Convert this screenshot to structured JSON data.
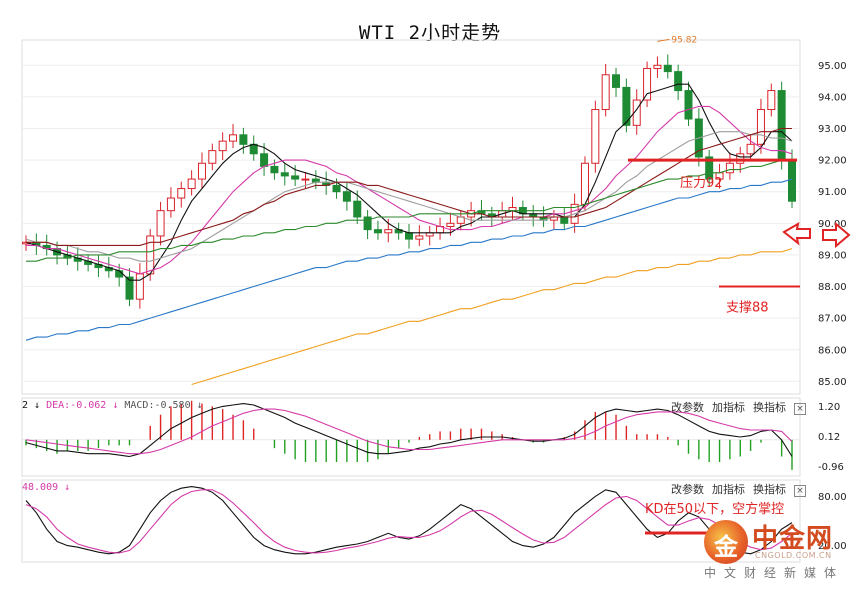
{
  "title": "WTI 2小时走势",
  "chart_data": [
    {
      "type": "candlestick",
      "instrument": "WTI",
      "timeframe": "2H",
      "y_axis_ticks": [
        "95.00",
        "94.00",
        "93.00",
        "92.00",
        "91.00",
        "90.00",
        "89.00",
        "88.00",
        "87.00",
        "86.00",
        "85.00"
      ],
      "ylim": [
        84.6,
        95.8
      ],
      "x_count": 75,
      "high_marker": "95.82",
      "closes": [
        89.4,
        89.3,
        89.2,
        89.0,
        88.9,
        88.8,
        88.7,
        88.6,
        88.5,
        88.3,
        87.6,
        88.4,
        89.6,
        90.4,
        90.8,
        91.1,
        91.4,
        91.9,
        92.3,
        92.6,
        92.8,
        92.5,
        92.2,
        91.8,
        91.6,
        91.5,
        91.4,
        91.4,
        91.3,
        91.2,
        91.0,
        90.7,
        90.2,
        89.8,
        89.7,
        89.8,
        89.7,
        89.5,
        89.6,
        89.7,
        89.9,
        90.0,
        90.2,
        90.4,
        90.3,
        90.2,
        90.4,
        90.5,
        90.3,
        90.2,
        90.1,
        90.2,
        90.0,
        90.6,
        91.9,
        93.6,
        94.7,
        94.3,
        93.1,
        93.9,
        94.9,
        95.0,
        94.8,
        94.2,
        93.3,
        92.1,
        91.4,
        91.6,
        91.9,
        92.2,
        92.5,
        93.6,
        94.2,
        92.0,
        90.7
      ],
      "series": [
        {
          "name": "MA5",
          "color": "#111111",
          "values": [
            89.4,
            89.3,
            89.2,
            89.1,
            89.0,
            88.9,
            88.8,
            88.7,
            88.6,
            88.5,
            88.2,
            88.2,
            88.4,
            88.9,
            89.4,
            90.1,
            90.7,
            91.1,
            91.5,
            91.9,
            92.2,
            92.4,
            92.5,
            92.4,
            92.2,
            91.9,
            91.7,
            91.6,
            91.5,
            91.4,
            91.3,
            91.1,
            90.9,
            90.6,
            90.3,
            90.0,
            89.8,
            89.7,
            89.7,
            89.7,
            89.7,
            89.7,
            89.9,
            90.0,
            90.2,
            90.2,
            90.3,
            90.4,
            90.3,
            90.3,
            90.3,
            90.3,
            90.2,
            90.2,
            90.6,
            91.3,
            92.1,
            92.9,
            93.2,
            93.6,
            94.1,
            94.2,
            94.3,
            94.4,
            94.4,
            93.9,
            93.2,
            92.6,
            92.2,
            92.1,
            92.1,
            92.4,
            92.9,
            92.9,
            92.6
          ]
        },
        {
          "name": "MA10",
          "color": "#d53aa8",
          "values": [
            89.3,
            89.3,
            89.2,
            89.2,
            89.1,
            89.0,
            88.9,
            88.8,
            88.7,
            88.6,
            88.5,
            88.4,
            88.5,
            88.6,
            88.8,
            89.1,
            89.4,
            89.8,
            90.2,
            90.6,
            91.0,
            91.3,
            91.6,
            91.8,
            91.9,
            92.0,
            92.0,
            92.0,
            91.9,
            91.8,
            91.6,
            91.5,
            91.3,
            91.1,
            90.9,
            90.7,
            90.5,
            90.3,
            90.1,
            90.0,
            89.9,
            89.8,
            89.8,
            89.8,
            89.9,
            89.9,
            90.0,
            90.1,
            90.2,
            90.2,
            90.2,
            90.3,
            90.3,
            90.4,
            90.5,
            90.8,
            91.1,
            91.5,
            91.8,
            92.1,
            92.5,
            92.9,
            93.2,
            93.5,
            93.6,
            93.7,
            93.7,
            93.5,
            93.2,
            92.9,
            92.6,
            92.4,
            92.3,
            92.3,
            92.2
          ]
        },
        {
          "name": "MA20",
          "color": "#9e9e9e",
          "values": [
            89.5,
            89.4,
            89.4,
            89.3,
            89.3,
            89.2,
            89.1,
            89.1,
            89.0,
            88.9,
            88.9,
            88.8,
            88.8,
            88.9,
            89.0,
            89.1,
            89.2,
            89.4,
            89.6,
            89.8,
            90.0,
            90.2,
            90.4,
            90.6,
            90.8,
            91.0,
            91.1,
            91.2,
            91.3,
            91.3,
            91.3,
            91.3,
            91.2,
            91.1,
            91.0,
            90.9,
            90.8,
            90.7,
            90.6,
            90.5,
            90.4,
            90.3,
            90.2,
            90.1,
            90.1,
            90.1,
            90.1,
            90.1,
            90.1,
            90.1,
            90.1,
            90.2,
            90.2,
            90.3,
            90.4,
            90.6,
            90.8,
            91.0,
            91.3,
            91.5,
            91.8,
            92.0,
            92.2,
            92.4,
            92.6,
            92.7,
            92.8,
            92.9,
            92.9,
            92.9,
            92.8,
            92.8,
            92.7,
            92.7,
            92.6
          ]
        },
        {
          "name": "MA30",
          "color": "#8b1a1a",
          "values": [
            89.4,
            89.4,
            89.4,
            89.3,
            89.3,
            89.3,
            89.3,
            89.3,
            89.3,
            89.3,
            89.3,
            89.3,
            89.4,
            89.4,
            89.5,
            89.6,
            89.7,
            89.8,
            89.9,
            90.0,
            90.1,
            90.3,
            90.4,
            90.6,
            90.7,
            90.9,
            91.0,
            91.1,
            91.2,
            91.2,
            91.3,
            91.3,
            91.3,
            91.2,
            91.2,
            91.1,
            91.0,
            90.9,
            90.8,
            90.7,
            90.6,
            90.5,
            90.4,
            90.3,
            90.3,
            90.2,
            90.2,
            90.2,
            90.2,
            90.2,
            90.2,
            90.2,
            90.2,
            90.2,
            90.3,
            90.4,
            90.5,
            90.7,
            90.9,
            91.1,
            91.3,
            91.5,
            91.7,
            91.9,
            92.1,
            92.3,
            92.4,
            92.5,
            92.6,
            92.7,
            92.8,
            92.9,
            92.9,
            93.0,
            93.0
          ]
        },
        {
          "name": "MA60",
          "color": "#2d8a2d",
          "values": [
            88.8,
            88.8,
            88.9,
            88.9,
            88.9,
            89.0,
            89.0,
            89.0,
            89.0,
            89.1,
            89.1,
            89.1,
            89.1,
            89.2,
            89.2,
            89.3,
            89.3,
            89.4,
            89.4,
            89.5,
            89.5,
            89.6,
            89.6,
            89.7,
            89.7,
            89.8,
            89.8,
            89.9,
            89.9,
            90.0,
            90.0,
            90.1,
            90.1,
            90.1,
            90.2,
            90.2,
            90.2,
            90.2,
            90.3,
            90.3,
            90.3,
            90.3,
            90.3,
            90.3,
            90.4,
            90.4,
            90.4,
            90.4,
            90.4,
            90.4,
            90.4,
            90.5,
            90.5,
            90.5,
            90.6,
            90.7,
            90.8,
            90.9,
            91.0,
            91.1,
            91.2,
            91.3,
            91.4,
            91.4,
            91.5,
            91.5,
            91.6,
            91.6,
            91.7,
            91.7,
            91.8,
            91.8,
            91.9,
            92.0,
            92.0
          ]
        },
        {
          "name": "MA120",
          "color": "#2878c8",
          "values": [
            86.3,
            86.4,
            86.4,
            86.5,
            86.5,
            86.6,
            86.6,
            86.7,
            86.7,
            86.8,
            86.8,
            86.9,
            87.0,
            87.1,
            87.2,
            87.3,
            87.4,
            87.5,
            87.6,
            87.7,
            87.8,
            87.9,
            88.0,
            88.1,
            88.2,
            88.3,
            88.4,
            88.5,
            88.6,
            88.6,
            88.7,
            88.8,
            88.8,
            88.9,
            88.9,
            89.0,
            89.0,
            89.1,
            89.1,
            89.2,
            89.2,
            89.3,
            89.3,
            89.4,
            89.4,
            89.5,
            89.5,
            89.6,
            89.6,
            89.7,
            89.7,
            89.8,
            89.8,
            89.9,
            89.9,
            90.0,
            90.1,
            90.2,
            90.3,
            90.4,
            90.5,
            90.6,
            90.7,
            90.8,
            90.8,
            90.9,
            91.0,
            91.0,
            91.1,
            91.1,
            91.2,
            91.2,
            91.3,
            91.3,
            91.4
          ]
        },
        {
          "name": "MA250",
          "color": "#f0a020",
          "start_index": 16,
          "values": [
            84.9,
            85.0,
            85.1,
            85.2,
            85.3,
            85.4,
            85.5,
            85.6,
            85.7,
            85.8,
            85.9,
            86.0,
            86.1,
            86.2,
            86.3,
            86.4,
            86.5,
            86.5,
            86.6,
            86.7,
            86.8,
            86.9,
            86.9,
            87.0,
            87.1,
            87.2,
            87.3,
            87.3,
            87.4,
            87.5,
            87.6,
            87.6,
            87.7,
            87.8,
            87.9,
            87.9,
            88.0,
            88.1,
            88.1,
            88.2,
            88.3,
            88.3,
            88.4,
            88.5,
            88.5,
            88.6,
            88.6,
            88.7,
            88.7,
            88.8,
            88.8,
            88.9,
            88.9,
            89.0,
            89.0,
            89.1,
            89.1,
            89.1,
            89.2
          ]
        }
      ],
      "annotations": {
        "resistance": {
          "label": "压力92",
          "price": 92.0,
          "color": "#e02424"
        },
        "support": {
          "label": "支撑88",
          "price": 88.0,
          "color": "#e02424"
        },
        "arrow_color": "#e02424"
      }
    },
    {
      "type": "macd",
      "header_prefix": "2",
      "dea_label": "DEA:-0.062",
      "macd_label": "MACD:-0.580",
      "toolbar": [
        "改参数",
        "加指标",
        "换指标"
      ],
      "y_axis_ticks": [
        "1.20",
        "0.12",
        "-0.96"
      ],
      "ylim": [
        -1.3,
        1.5
      ],
      "up_color": "#e02424",
      "down_color": "#22a022",
      "dif": [
        -0.1,
        -0.2,
        -0.3,
        -0.4,
        -0.4,
        -0.45,
        -0.5,
        -0.5,
        -0.5,
        -0.55,
        -0.6,
        -0.5,
        -0.2,
        0.1,
        0.4,
        0.6,
        0.8,
        0.95,
        1.1,
        1.2,
        1.25,
        1.3,
        1.25,
        1.1,
        0.95,
        0.8,
        0.6,
        0.45,
        0.3,
        0.15,
        0.0,
        -0.15,
        -0.3,
        -0.45,
        -0.5,
        -0.5,
        -0.45,
        -0.4,
        -0.3,
        -0.25,
        -0.15,
        -0.1,
        0.0,
        0.05,
        0.1,
        0.1,
        0.1,
        0.05,
        0.0,
        -0.05,
        -0.05,
        0.0,
        0.05,
        0.2,
        0.5,
        0.8,
        1.0,
        1.1,
        1.05,
        1.0,
        1.05,
        1.1,
        1.05,
        0.9,
        0.7,
        0.5,
        0.3,
        0.2,
        0.15,
        0.1,
        0.15,
        0.3,
        0.35,
        0.0,
        -0.6
      ],
      "dea": [
        0.0,
        -0.05,
        -0.1,
        -0.15,
        -0.2,
        -0.25,
        -0.3,
        -0.35,
        -0.4,
        -0.45,
        -0.5,
        -0.5,
        -0.45,
        -0.35,
        -0.2,
        -0.05,
        0.1,
        0.3,
        0.5,
        0.65,
        0.8,
        0.95,
        1.05,
        1.1,
        1.1,
        1.05,
        0.95,
        0.85,
        0.7,
        0.55,
        0.4,
        0.25,
        0.1,
        -0.05,
        -0.15,
        -0.25,
        -0.3,
        -0.35,
        -0.35,
        -0.35,
        -0.3,
        -0.25,
        -0.2,
        -0.15,
        -0.1,
        -0.05,
        0.0,
        0.0,
        0.0,
        0.0,
        0.0,
        0.0,
        0.0,
        0.05,
        0.15,
        0.3,
        0.5,
        0.65,
        0.8,
        0.9,
        0.95,
        1.0,
        1.0,
        1.0,
        0.95,
        0.85,
        0.7,
        0.6,
        0.5,
        0.4,
        0.35,
        0.35,
        0.35,
        0.3,
        -0.06
      ]
    },
    {
      "type": "kd",
      "value_label": "48.009",
      "toolbar": [
        "改参数",
        "加指标",
        "换指标"
      ],
      "y_axis_ticks": [
        "80.00",
        "20.00"
      ],
      "ylim": [
        0,
        100
      ],
      "annotation": "KD在50以下，空方掌控",
      "annotation_color": "#e02424",
      "k": [
        75,
        60,
        40,
        25,
        20,
        18,
        15,
        12,
        10,
        12,
        20,
        40,
        60,
        75,
        85,
        90,
        92,
        90,
        85,
        75,
        60,
        45,
        30,
        20,
        15,
        12,
        10,
        10,
        12,
        15,
        18,
        20,
        22,
        25,
        30,
        35,
        30,
        28,
        32,
        40,
        50,
        60,
        70,
        65,
        55,
        45,
        35,
        25,
        20,
        18,
        22,
        30,
        45,
        60,
        70,
        80,
        88,
        85,
        70,
        55,
        40,
        30,
        35,
        50,
        60,
        55,
        40,
        25,
        15,
        12,
        10,
        15,
        25,
        40,
        48
      ],
      "d": [
        70,
        65,
        55,
        40,
        30,
        22,
        18,
        15,
        12,
        11,
        14,
        25,
        40,
        55,
        70,
        80,
        86,
        88,
        88,
        82,
        72,
        60,
        48,
        35,
        25,
        18,
        14,
        12,
        11,
        12,
        14,
        17,
        19,
        22,
        25,
        29,
        31,
        30,
        30,
        33,
        38,
        46,
        55,
        62,
        63,
        58,
        50,
        42,
        34,
        27,
        23,
        24,
        30,
        40,
        50,
        60,
        70,
        78,
        80,
        75,
        65,
        55,
        45,
        45,
        50,
        54,
        52,
        45,
        35,
        25,
        18,
        15,
        17,
        25,
        35
      ]
    }
  ],
  "watermark": {
    "glyph": "金",
    "name": "中金网",
    "url": "CNGOLD.COM.CN",
    "slogan": "中文财经新媒体"
  }
}
